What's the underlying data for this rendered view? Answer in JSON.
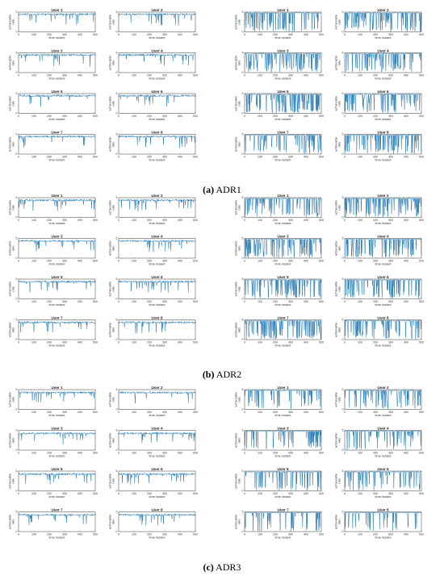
{
  "figure": {
    "captions": [
      {
        "label": "(a)",
        "text": "ADR1"
      },
      {
        "label": "(b)",
        "text": "ADR2"
      },
      {
        "label": "(c)",
        "text": "ADR3"
      }
    ]
  },
  "chart_data": {
    "type": "line",
    "layout_description": "Three panels (ADR1, ADR2, ADR3); each panel has two groups of 8 user subplots arranged 4 rows x 2 columns.",
    "subplot_titles": [
      "User 1",
      "User 2",
      "User 3",
      "User 4",
      "User 5",
      "User 6",
      "User 7",
      "User 8"
    ],
    "xlabel": "time instant",
    "ylabel": "achievable rate",
    "xlim": [
      0,
      500
    ],
    "ylim": [
      0,
      5
    ],
    "x_ticks": [
      0,
      100,
      200,
      300,
      400,
      500
    ],
    "y_ticks": [
      0,
      5
    ],
    "line_color": "#1f77b4",
    "series_description": "Each subplot shows achievable rate per time instant (0-500). Left groups stay mostly near 4-5 with sparse drops; right groups switch frequently between ~5 and ~0.",
    "panels": [
      {
        "name": "ADR1",
        "groups": [
          {
            "side": "left",
            "base_level": 4.7,
            "drop_frequency": "low"
          },
          {
            "side": "right",
            "base_level": 4.9,
            "drop_frequency": "high"
          }
        ]
      },
      {
        "name": "ADR2",
        "groups": [
          {
            "side": "left",
            "base_level": 4.6,
            "drop_frequency": "low"
          },
          {
            "side": "right",
            "base_level": 4.9,
            "drop_frequency": "high"
          }
        ]
      },
      {
        "name": "ADR3",
        "groups": [
          {
            "side": "left",
            "base_level": 4.5,
            "drop_frequency": "low"
          },
          {
            "side": "right",
            "base_level": 4.9,
            "drop_frequency": "medium"
          }
        ]
      }
    ]
  }
}
